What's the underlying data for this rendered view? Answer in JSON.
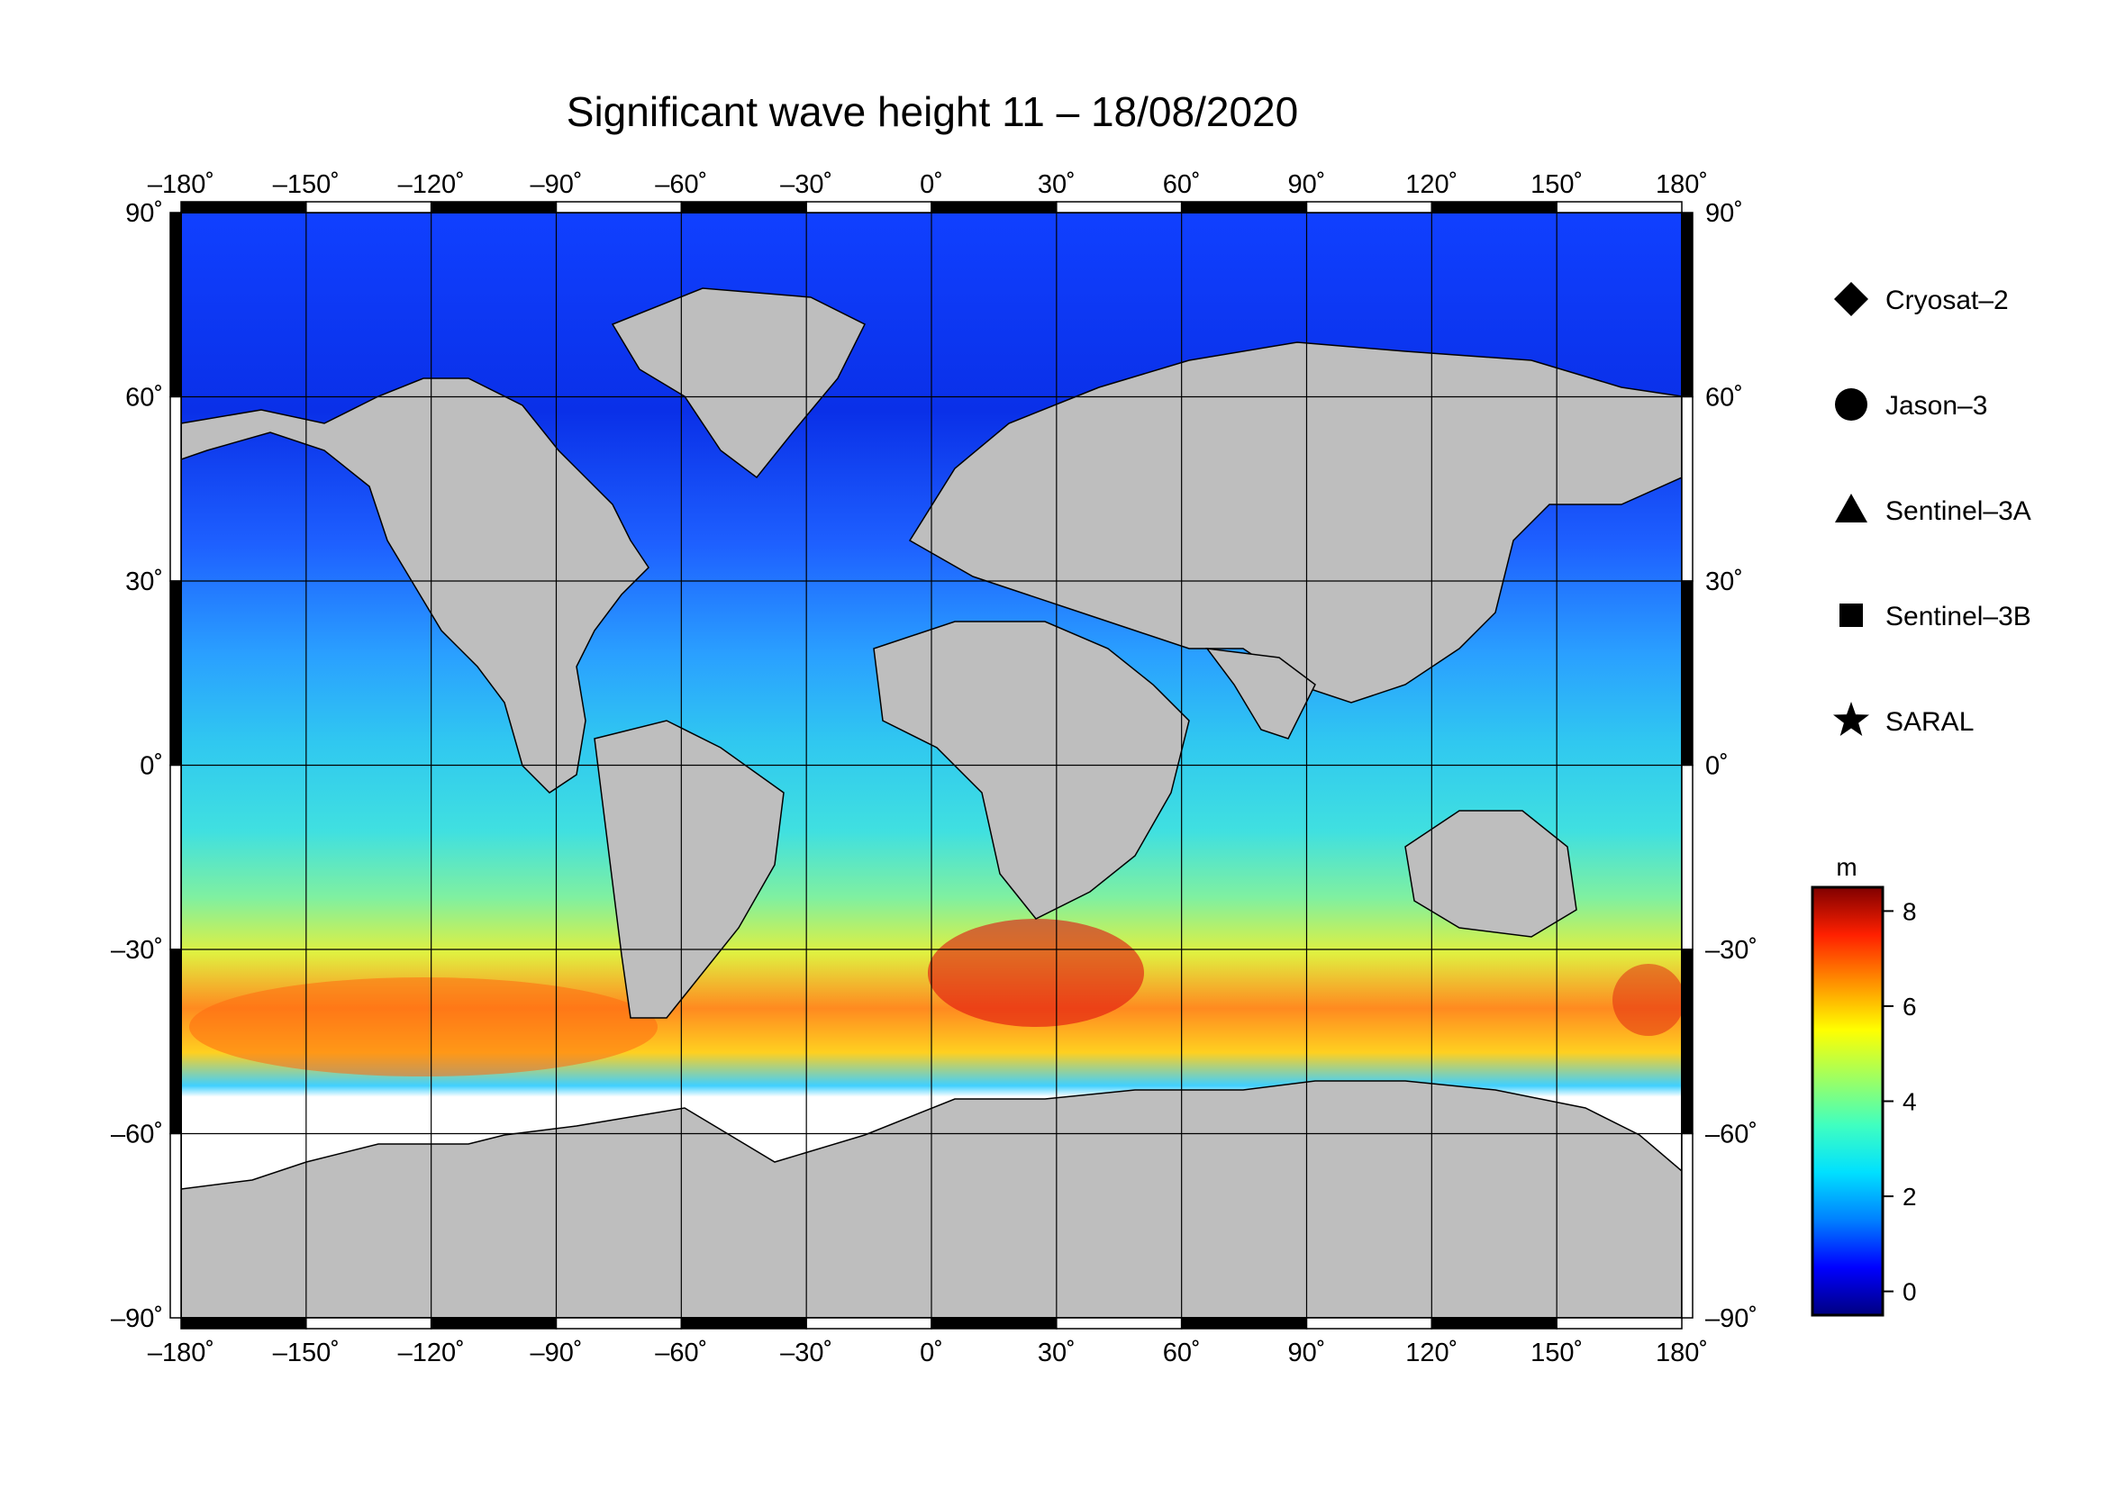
{
  "title": "Significant wave height 11 – 18/08/2020",
  "lon_ticks": [
    "–180˚",
    "–150˚",
    "–120˚",
    "–90˚",
    "–60˚",
    "–30˚",
    "0˚",
    "30˚",
    "60˚",
    "90˚",
    "120˚",
    "150˚",
    "180˚"
  ],
  "lat_ticks_left": [
    "90˚",
    "60˚",
    "30˚",
    "0˚",
    "–30˚",
    "–60˚",
    "–90˚"
  ],
  "lat_ticks_right": [
    "90˚",
    "60˚",
    "30˚",
    "0˚",
    "–30˚",
    "–60˚",
    "–90˚"
  ],
  "legend": [
    {
      "name": "Cryosat–2",
      "marker": "diamond"
    },
    {
      "name": "Jason–3",
      "marker": "circle"
    },
    {
      "name": "Sentinel–3A",
      "marker": "triangle"
    },
    {
      "name": "Sentinel–3B",
      "marker": "square"
    },
    {
      "name": "SARAL",
      "marker": "star"
    }
  ],
  "colorbar": {
    "unit": "m",
    "ticks": [
      "0",
      "2",
      "4",
      "6",
      "8"
    ],
    "tick_values": [
      0,
      2,
      4,
      6,
      8
    ],
    "range": [
      -0.5,
      8.5
    ],
    "colors": [
      "#000080",
      "#0000ff",
      "#0080ff",
      "#00e0ff",
      "#40ffc0",
      "#a0ff60",
      "#ffff00",
      "#ff9000",
      "#ff2000",
      "#800000"
    ]
  },
  "colors": {
    "land": "#bebebe",
    "ice": "#ffffff",
    "frame": "#000000"
  }
}
